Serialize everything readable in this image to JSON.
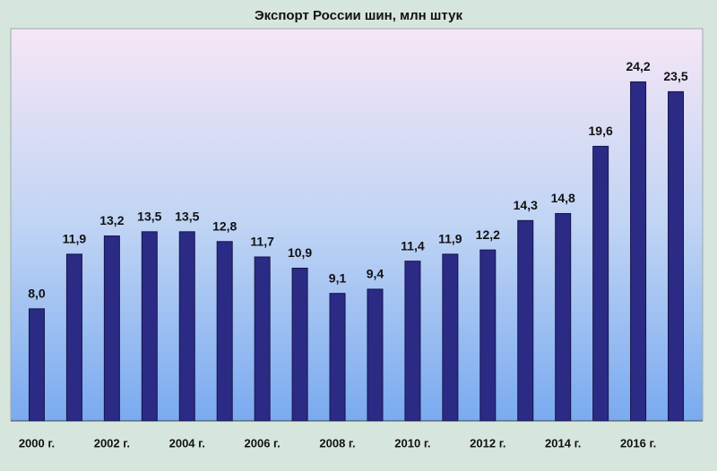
{
  "chart_data": {
    "type": "bar",
    "title": "Экспорт России шин, млн штук",
    "categories": [
      "2000 г.",
      null,
      "2002 г.",
      null,
      "2004 г.",
      null,
      "2006 г.",
      null,
      "2008 г.",
      null,
      "2010 г.",
      null,
      "2012 г.",
      null,
      "2014 г.",
      null,
      "2016 г.",
      null
    ],
    "values": [
      8.0,
      11.9,
      13.2,
      13.5,
      13.5,
      12.8,
      11.7,
      10.9,
      9.1,
      9.4,
      11.4,
      11.9,
      12.2,
      14.3,
      14.8,
      19.6,
      24.2,
      23.5
    ],
    "value_labels": [
      "8,0",
      "11,9",
      "13,2",
      "13,5",
      "13,5",
      "12,8",
      "11,7",
      "10,9",
      "9,1",
      "9,4",
      "11,4",
      "11,9",
      "12,2",
      "14,3",
      "14,8",
      "19,6",
      "24,2",
      "23,5"
    ],
    "color": "#2b2b85",
    "ylim": [
      0,
      28
    ]
  }
}
